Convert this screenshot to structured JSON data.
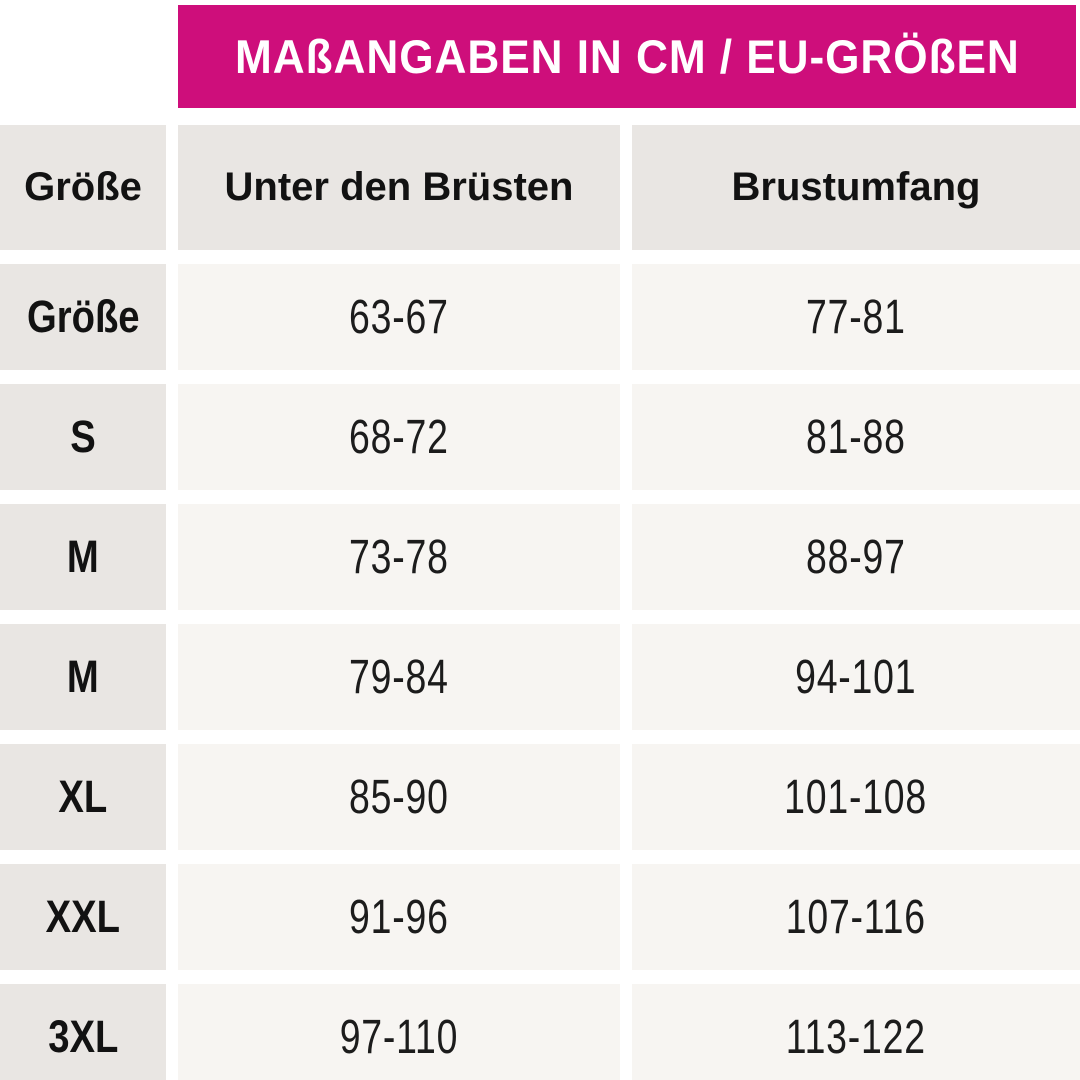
{
  "banner": {
    "title": "MAßANGABEN IN CM / EU-GRÖßEN",
    "bg_color": "#CE0E7B",
    "text_color": "#ffffff"
  },
  "table": {
    "headers": [
      "Größe",
      "Unter den Brüsten",
      "Brustumfang"
    ],
    "rows": [
      {
        "size": "Größe",
        "under_bust": "63-67",
        "bust": "77-81"
      },
      {
        "size": "S",
        "under_bust": "68-72",
        "bust": "81-88"
      },
      {
        "size": "M",
        "under_bust": "73-78",
        "bust": "88-97"
      },
      {
        "size": "M",
        "under_bust": "79-84",
        "bust": "94-101"
      },
      {
        "size": "XL",
        "under_bust": "85-90",
        "bust": "101-108"
      },
      {
        "size": "XXL",
        "under_bust": "91-96",
        "bust": "107-116"
      },
      {
        "size": "3XL",
        "under_bust": "97-110",
        "bust": "113-122"
      }
    ]
  },
  "colors": {
    "banner_magenta": "#CE0E7B",
    "header_cell_gray": "#E9E6E3",
    "value_cell_gray": "#F7F5F2",
    "text_dark": "#121212",
    "page_bg": "#ffffff"
  },
  "chart_data": {
    "type": "table",
    "title": "MAßANGABEN IN CM / EU-GRÖßEN",
    "columns": [
      "Größe",
      "Unter den Brüsten",
      "Brustumfang"
    ],
    "rows": [
      [
        "Größe",
        "63-67",
        "77-81"
      ],
      [
        "S",
        "68-72",
        "81-88"
      ],
      [
        "M",
        "73-78",
        "88-97"
      ],
      [
        "M",
        "79-84",
        "94-101"
      ],
      [
        "XL",
        "85-90",
        "101-108"
      ],
      [
        "XXL",
        "91-96",
        "107-116"
      ],
      [
        "3XL",
        "97-110",
        "113-122"
      ]
    ],
    "units": "cm",
    "sizing_system": "EU"
  }
}
